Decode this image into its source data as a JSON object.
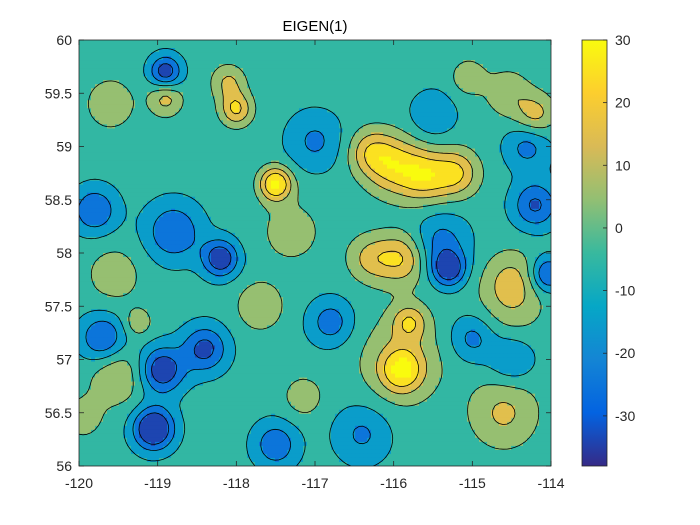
{
  "chart_data": {
    "type": "heatmap",
    "title": "EIGEN(1)",
    "xlabel": "",
    "ylabel": "",
    "xlim": [
      -120,
      -114
    ],
    "ylim": [
      56,
      60
    ],
    "x_ticks": [
      -120,
      -119,
      -118,
      -117,
      -116,
      -115,
      -114
    ],
    "x_tick_labels": [
      "-120",
      "-119",
      "-118",
      "-117",
      "-116",
      "-115",
      "-114"
    ],
    "y_ticks": [
      56,
      56.5,
      57,
      57.5,
      58,
      58.5,
      59,
      59.5,
      60
    ],
    "y_tick_labels": [
      "56",
      "56.5",
      "57",
      "57.5",
      "58",
      "58.5",
      "59",
      "59.5",
      "60"
    ],
    "colorbar": {
      "colormap": "parula",
      "clim": [
        -38,
        30
      ],
      "ticks": [
        30,
        20,
        10,
        0,
        -10,
        -20,
        -30
      ],
      "tick_labels": [
        "30",
        "20",
        "10",
        "0",
        "-10",
        "-20",
        "-30"
      ]
    },
    "contour_levels": [
      -30,
      -20,
      -10,
      0,
      10,
      20
    ],
    "peaks": [
      {
        "lon": -117.5,
        "lat": 58.65,
        "amp": 40,
        "r": 0.14
      },
      {
        "lon": -116.0,
        "lat": 58.82,
        "amp": 28,
        "r": 0.25
      },
      {
        "lon": -115.6,
        "lat": 58.72,
        "amp": 28,
        "r": 0.22
      },
      {
        "lon": -115.2,
        "lat": 58.75,
        "amp": 26,
        "r": 0.2
      },
      {
        "lon": -116.3,
        "lat": 58.95,
        "amp": 20,
        "r": 0.2
      },
      {
        "lon": -115.9,
        "lat": 57.95,
        "amp": 26,
        "r": 0.22
      },
      {
        "lon": -116.3,
        "lat": 57.95,
        "amp": 18,
        "r": 0.2
      },
      {
        "lon": -115.9,
        "lat": 56.9,
        "amp": 30,
        "r": 0.18
      },
      {
        "lon": -115.8,
        "lat": 57.35,
        "amp": 22,
        "r": 0.15
      },
      {
        "lon": -115.9,
        "lat": 57.0,
        "amp": 14,
        "r": 0.4
      },
      {
        "lon": -114.6,
        "lat": 56.5,
        "amp": 18,
        "r": 0.3
      },
      {
        "lon": -114.5,
        "lat": 57.75,
        "amp": 16,
        "r": 0.25
      },
      {
        "lon": -114.5,
        "lat": 57.5,
        "amp": 10,
        "r": 0.3
      },
      {
        "lon": -114.2,
        "lat": 59.3,
        "amp": 20,
        "r": 0.18
      },
      {
        "lon": -114.55,
        "lat": 59.5,
        "amp": 14,
        "r": 0.2
      },
      {
        "lon": -115.05,
        "lat": 59.65,
        "amp": 14,
        "r": 0.15
      },
      {
        "lon": -118.0,
        "lat": 59.35,
        "amp": 28,
        "r": 0.14
      },
      {
        "lon": -118.1,
        "lat": 59.6,
        "amp": 18,
        "r": 0.15
      },
      {
        "lon": -118.9,
        "lat": 59.45,
        "amp": 20,
        "r": 0.15
      },
      {
        "lon": -119.6,
        "lat": 59.4,
        "amp": 16,
        "r": 0.2
      },
      {
        "lon": -119.5,
        "lat": 56.85,
        "amp": 16,
        "r": 0.25
      },
      {
        "lon": -119.95,
        "lat": 56.45,
        "amp": 10,
        "r": 0.2
      },
      {
        "lon": -119.55,
        "lat": 57.8,
        "amp": 12,
        "r": 0.25
      },
      {
        "lon": -117.7,
        "lat": 57.5,
        "amp": 16,
        "r": 0.2
      },
      {
        "lon": -117.15,
        "lat": 56.65,
        "amp": 12,
        "r": 0.18
      },
      {
        "lon": -117.3,
        "lat": 58.2,
        "amp": 10,
        "r": 0.3
      },
      {
        "lon": -119.25,
        "lat": 57.35,
        "amp": 14,
        "r": 0.12
      },
      {
        "lon": -119.05,
        "lat": 56.35,
        "amp": -42,
        "r": 0.18
      },
      {
        "lon": -118.95,
        "lat": 56.9,
        "amp": -34,
        "r": 0.2
      },
      {
        "lon": -118.9,
        "lat": 59.7,
        "amp": -32,
        "r": 0.14
      },
      {
        "lon": -118.2,
        "lat": 57.95,
        "amp": -34,
        "r": 0.16
      },
      {
        "lon": -118.4,
        "lat": 57.1,
        "amp": -28,
        "r": 0.2
      },
      {
        "lon": -119.7,
        "lat": 57.2,
        "amp": -26,
        "r": 0.2
      },
      {
        "lon": -119.8,
        "lat": 58.4,
        "amp": -24,
        "r": 0.2
      },
      {
        "lon": -118.8,
        "lat": 58.2,
        "amp": -24,
        "r": 0.25
      },
      {
        "lon": -117.5,
        "lat": 56.2,
        "amp": -22,
        "r": 0.2
      },
      {
        "lon": -115.3,
        "lat": 57.85,
        "amp": -32,
        "r": 0.15
      },
      {
        "lon": -114.2,
        "lat": 58.45,
        "amp": -26,
        "r": 0.2
      },
      {
        "lon": -114.3,
        "lat": 59.0,
        "amp": -18,
        "r": 0.2
      },
      {
        "lon": -114.05,
        "lat": 57.8,
        "amp": -28,
        "r": 0.15
      },
      {
        "lon": -115.4,
        "lat": 58.1,
        "amp": -18,
        "r": 0.25
      },
      {
        "lon": -116.8,
        "lat": 57.35,
        "amp": -20,
        "r": 0.2
      },
      {
        "lon": -115.0,
        "lat": 57.2,
        "amp": -18,
        "r": 0.2
      },
      {
        "lon": -117.0,
        "lat": 59.05,
        "amp": -16,
        "r": 0.25
      },
      {
        "lon": -115.5,
        "lat": 59.3,
        "amp": -14,
        "r": 0.2
      },
      {
        "lon": -116.4,
        "lat": 56.3,
        "amp": -16,
        "r": 0.25
      },
      {
        "lon": -114.5,
        "lat": 57.0,
        "amp": -16,
        "r": 0.2
      }
    ],
    "field_baseline": -6
  }
}
